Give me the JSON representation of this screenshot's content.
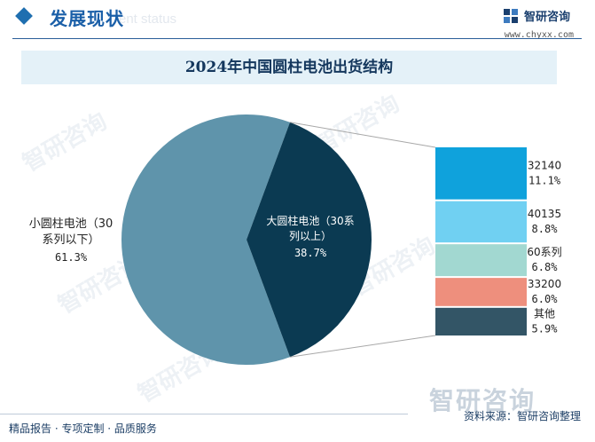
{
  "header": {
    "section_title": "发展现状",
    "section_subtitle": "ent status",
    "brand_name": "智研咨询",
    "brand_url": "www.chyxx.com"
  },
  "chart_data": {
    "type": "pie",
    "title": "2024年中国圆柱电池出货结构",
    "slices": [
      {
        "name": "小圆柱电池（30系列以下）",
        "value": 61.3,
        "label": "61.3%",
        "color": "#5f94ab"
      },
      {
        "name": "大圆柱电池（30系列以上）",
        "value": 38.7,
        "label": "38.7%",
        "color": "#0b3a52"
      }
    ],
    "breakdown": {
      "parent": "大圆柱电池（30系列以上）",
      "items": [
        {
          "name": "32140",
          "value": 11.1,
          "label": "11.1%",
          "color": "#0fa2dc"
        },
        {
          "name": "40135",
          "value": 8.8,
          "label": "8.8%",
          "color": "#70d0f2"
        },
        {
          "name": "60系列",
          "value": 6.8,
          "label": "6.8%",
          "color": "#a2d8d1"
        },
        {
          "name": "33200",
          "value": 6.0,
          "label": "6.0%",
          "color": "#ee8f7d"
        },
        {
          "name": "其他",
          "value": 5.9,
          "label": "5.9%",
          "color": "#335566"
        }
      ]
    },
    "labels": {
      "small_line1": "小圆柱电池（30",
      "small_line2": "系列以下）",
      "big_line1": "大圆柱电池（30系",
      "big_line2": "列以上）"
    }
  },
  "footer": {
    "services": "精品报告 · 专项定制 · 品质服务",
    "source": "资料来源：智研咨询整理",
    "watermark": "智研咨询"
  }
}
